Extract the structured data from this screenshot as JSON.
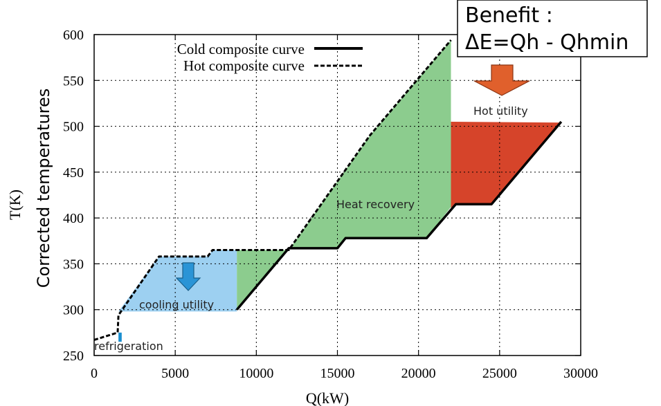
{
  "chart_data": {
    "type": "line",
    "xlabel": "Q(kW)",
    "ylabel_line1": "T(K)",
    "ylabel_line2": "Corrected temperatures",
    "xlim": [
      0,
      30000
    ],
    "ylim": [
      250,
      600
    ],
    "x_ticks": [
      0,
      5000,
      10000,
      15000,
      20000,
      25000,
      30000
    ],
    "y_ticks": [
      250,
      300,
      350,
      400,
      450,
      500,
      550,
      600
    ],
    "grid": true,
    "legend_position": "top",
    "series": [
      {
        "name": "Cold composite curve",
        "style": "solid",
        "points": [
          [
            8800,
            300
          ],
          [
            12000,
            367
          ],
          [
            15000,
            367
          ],
          [
            15500,
            378
          ],
          [
            20500,
            378
          ],
          [
            22300,
            415
          ],
          [
            24500,
            415
          ],
          [
            28800,
            505
          ]
        ]
      },
      {
        "name": "Hot composite curve",
        "style": "dashed",
        "points": [
          [
            0,
            267
          ],
          [
            1450,
            275
          ],
          [
            1500,
            294
          ],
          [
            4000,
            358
          ],
          [
            7000,
            358
          ],
          [
            7300,
            365
          ],
          [
            12000,
            365
          ],
          [
            17000,
            490
          ],
          [
            22000,
            594
          ]
        ]
      }
    ],
    "regions": [
      {
        "label": "refrigeration",
        "color": "#1a8fd0",
        "points": [
          [
            1500,
            275
          ],
          [
            1500,
            265
          ],
          [
            1700,
            265
          ],
          [
            1700,
            275
          ]
        ]
      },
      {
        "label": "cooling utility",
        "color": "#9dd0f1",
        "points": [
          [
            1500,
            298
          ],
          [
            4000,
            358
          ],
          [
            7000,
            358
          ],
          [
            7300,
            365
          ],
          [
            8800,
            365
          ],
          [
            8800,
            298
          ]
        ]
      },
      {
        "label": "Heat recovery",
        "color": "#8ccc8e",
        "points": [
          [
            8800,
            300
          ],
          [
            8800,
            365
          ],
          [
            12000,
            365
          ],
          [
            17000,
            490
          ],
          [
            22000,
            594
          ],
          [
            22000,
            412
          ],
          [
            20500,
            378
          ],
          [
            15500,
            378
          ],
          [
            15000,
            367
          ],
          [
            12000,
            367
          ]
        ]
      },
      {
        "label": "Hot utility",
        "color": "#d6442a",
        "points": [
          [
            22000,
            505
          ],
          [
            28800,
            504
          ],
          [
            24500,
            415
          ],
          [
            22300,
            415
          ],
          [
            22000,
            410
          ]
        ]
      }
    ],
    "annotations": {
      "benefit_line1": "Benefit :",
      "benefit_line2": "ΔE=Qh - Qhmin"
    }
  },
  "colors": {
    "arrow_blue": "#2a94d6",
    "arrow_orange": "#e0602c"
  }
}
